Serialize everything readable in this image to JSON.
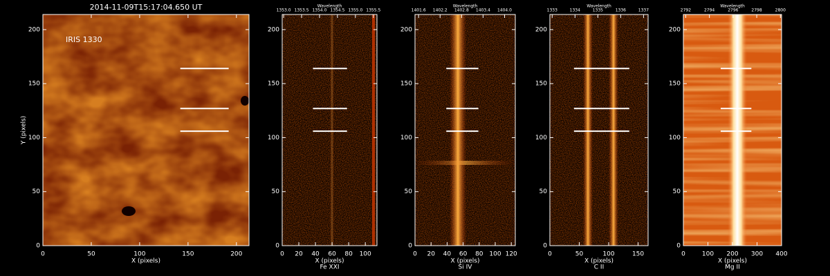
{
  "chart_data": [
    {
      "type": "image",
      "title": "2014-11-09T15:17:04.650 UT",
      "annotation": "IRIS 1330",
      "xlabel": "X (pixels)",
      "ylabel": "Y (pixels)",
      "xlim": [
        0,
        213
      ],
      "ylim": [
        0,
        214
      ],
      "xticks": [
        0,
        50,
        100,
        150,
        200
      ],
      "yticks": [
        0,
        50,
        100,
        150,
        200
      ],
      "slit_y": [
        164,
        127,
        106
      ],
      "slit_x": [
        142,
        192
      ]
    },
    {
      "type": "image",
      "xlabel": "X (pixels)",
      "sublabel": "Fe XXI",
      "x2label": "Wavelength",
      "xlim": [
        0,
        114
      ],
      "ylim": [
        0,
        214
      ],
      "xticks": [
        0,
        20,
        40,
        60,
        80,
        100
      ],
      "yticks": [
        0,
        50,
        100,
        150,
        200
      ],
      "x2lim": [
        1352.96,
        1355.6
      ],
      "x2ticks": [
        {
          "value": 1353,
          "label": "1353.0"
        },
        1353.5,
        {
          "value": 1354,
          "label": "1354.0"
        },
        1354.5,
        {
          "value": 1355,
          "label": "1355.0"
        },
        1355.5
      ],
      "slit_y": [
        164,
        127,
        106
      ],
      "slit_x": [
        37,
        78
      ]
    },
    {
      "type": "image",
      "xlabel": "X (pixels)",
      "sublabel": "Si IV",
      "x2label": "Wavelength",
      "xlim": [
        0,
        125
      ],
      "ylim": [
        0,
        214
      ],
      "xticks": [
        0,
        20,
        40,
        60,
        80,
        100,
        120
      ],
      "yticks": [
        0,
        50,
        100,
        150,
        200
      ],
      "x2lim": [
        1401.5,
        1404.3
      ],
      "x2ticks": [
        1401.6,
        1402.2,
        1402.8,
        1403.4,
        {
          "value": 1404,
          "label": "1404.0"
        }
      ],
      "slit_y": [
        164,
        127,
        106
      ],
      "slit_x": [
        39,
        79
      ]
    },
    {
      "type": "image",
      "xlabel": "X (pixels)",
      "sublabel": "C II",
      "x2label": "Wavelength",
      "xlim": [
        0,
        167
      ],
      "ylim": [
        0,
        214
      ],
      "xticks": [
        0,
        50,
        100,
        150
      ],
      "yticks": [
        0,
        50,
        100,
        150,
        200
      ],
      "x2lim": [
        1332.9,
        1337.2
      ],
      "x2ticks": [
        1333,
        1334,
        1335,
        1336,
        1337
      ],
      "slit_y": [
        164,
        127,
        106
      ],
      "slit_x": [
        41,
        135
      ]
    },
    {
      "type": "image",
      "xlabel": "X (pixels)",
      "sublabel": "Mg II",
      "x2label": "Wavelength",
      "xlim": [
        0,
        400
      ],
      "ylim": [
        0,
        214
      ],
      "xticks": [
        0,
        100,
        200,
        300,
        400
      ],
      "yticks": [
        0,
        50,
        100,
        150,
        200
      ],
      "x2lim": [
        2791.8,
        2800.1
      ],
      "x2ticks": [
        2792,
        2794,
        2796,
        2798,
        2800
      ],
      "slit_y": [
        164,
        127,
        106
      ],
      "slit_x": [
        152,
        277
      ]
    }
  ]
}
